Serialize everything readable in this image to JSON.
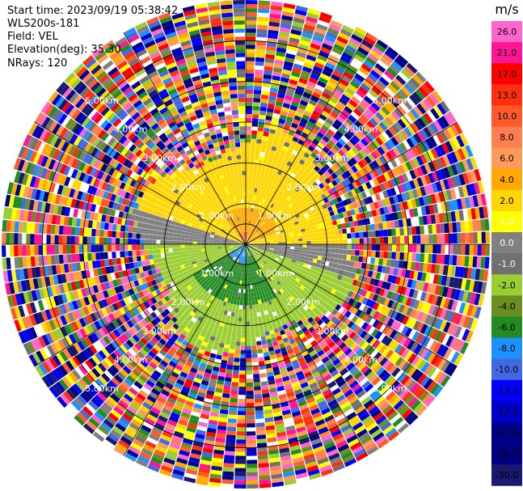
{
  "header": {
    "start_time": "Start time: 2023/09/19 05:38:42",
    "instrument": "WLS200s-181",
    "field": "Field: VEL",
    "elevation": "Elevation(deg): 35.30",
    "nrays": "NRays: 120"
  },
  "colorbar": {
    "unit": "m/s",
    "ticks": [
      "26.0",
      "21.0",
      "17.0",
      "13.0",
      "10.0",
      "8.0",
      "6.0",
      "4.0",
      "2.0",
      "1.0",
      "0.0",
      "-1.0",
      "-2.0",
      "-4.0",
      "-6.0",
      "-8.0",
      "-10.0",
      "-13.0",
      "-17.0",
      "-21.0",
      "-26.0",
      "-30.0"
    ],
    "colors": [
      "#ff66cc",
      "#ff1493",
      "#ff0000",
      "#ff3010",
      "#ff5a28",
      "#ff7f50",
      "#ff9a5a",
      "#ffaa00",
      "#ffd700",
      "#ffff00",
      "#808080",
      "#707070",
      "#9acd32",
      "#6b8e23",
      "#228b22",
      "#1e90ff",
      "#4169e1",
      "#0000ff",
      "#0000cd",
      "#00008b",
      "#000080",
      "#191970"
    ]
  },
  "chart_data": {
    "type": "ppi",
    "field": "VEL",
    "unit": "m/s",
    "nrays": 120,
    "range_rings_km": [
      "1.00km",
      "2.00km",
      "3.00km",
      "4.00km",
      "5.00km"
    ],
    "max_range_km": 6.0,
    "velocity_regions": [
      {
        "description": "positive (receding) core",
        "range_km": [
          0.0,
          0.9
        ],
        "azimuth_deg": [
          300,
          60
        ],
        "value_ms": 4.0
      },
      {
        "description": "positive (receding) region",
        "range_km": [
          0.0,
          2.0
        ],
        "azimuth_deg": [
          280,
          100
        ],
        "value_ms": 2.0
      },
      {
        "description": "negative (approaching) core",
        "range_km": [
          0.0,
          1.5
        ],
        "azimuth_deg": [
          170,
          220
        ],
        "value_ms": -6.0
      },
      {
        "description": "negative (approaching) region",
        "range_km": [
          0.0,
          2.5
        ],
        "azimuth_deg": [
          110,
          260
        ],
        "value_ms": -2.0
      },
      {
        "description": "near-zero transition bands",
        "range_km": [
          0.0,
          2.2
        ],
        "azimuth_deg": [
          [
            95,
            120
          ],
          [
            255,
            290
          ]
        ],
        "value_ms": 0.0
      },
      {
        "description": "noise beyond valid range",
        "range_km": [
          2.5,
          6.0
        ],
        "azimuth_deg": [
          0,
          360
        ],
        "value_ms": null
      }
    ]
  }
}
